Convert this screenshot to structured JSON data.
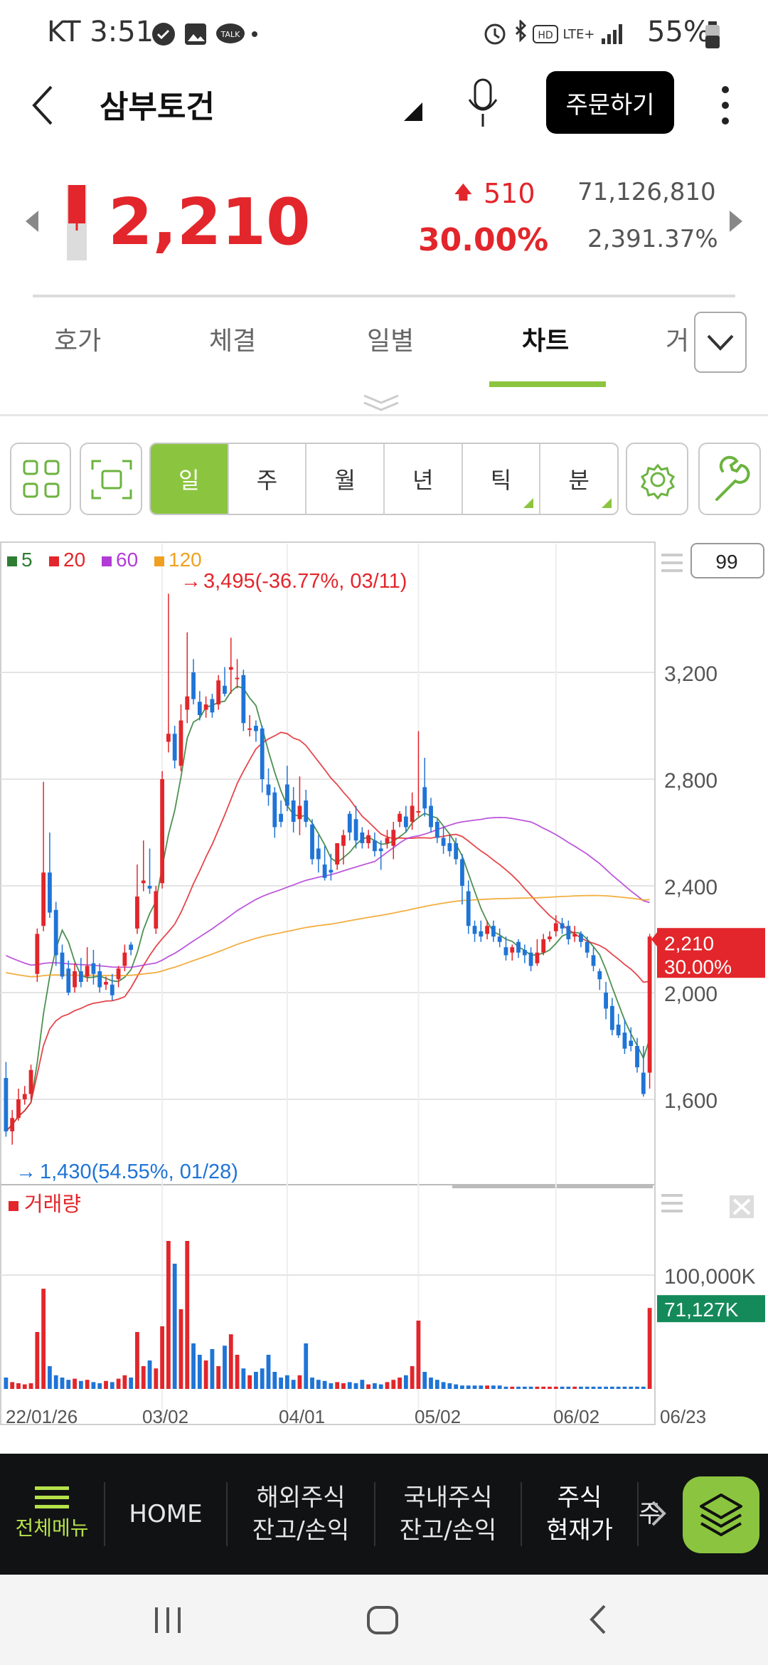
{
  "status_bar": {
    "carrier_time": "KT 3:51",
    "battery": "55%",
    "talk_badge": "TALK",
    "hd_badge": "HD",
    "network": "LTE+"
  },
  "header": {
    "title": "삼부토건",
    "order_label": "주문하기"
  },
  "price": {
    "current": "2,210",
    "change": "510",
    "change_rate": "30.00%",
    "volume": "71,126,810",
    "volume_rate": "2,391.37%"
  },
  "tabs": [
    "호가",
    "체결",
    "일별",
    "차트",
    "거"
  ],
  "active_tab": "차트",
  "periods": [
    {
      "label": "일",
      "active": true,
      "corner": false
    },
    {
      "label": "주",
      "active": false,
      "corner": false
    },
    {
      "label": "월",
      "active": false,
      "corner": false
    },
    {
      "label": "년",
      "active": false,
      "corner": false
    },
    {
      "label": "틱",
      "active": false,
      "corner": true
    },
    {
      "label": "분",
      "active": false,
      "corner": true
    }
  ],
  "chart_data": {
    "type": "candlestick",
    "legend": [
      {
        "label": "5",
        "color": "#2e7d32"
      },
      {
        "label": "20",
        "color": "#e2262b"
      },
      {
        "label": "60",
        "color": "#b23bd6"
      },
      {
        "label": "120",
        "color": "#f0a020"
      }
    ],
    "count_box": "99",
    "high_annotation": "3,495(-36.77%, 03/11)",
    "low_annotation": "1,430(54.55%, 01/28)",
    "y_ticks": [
      3200,
      2800,
      2400,
      2000,
      1600
    ],
    "y_tick_labels": [
      "3,200",
      "2,800",
      "2,400",
      "2,000",
      "1,600"
    ],
    "ylim": [
      1400,
      3560
    ],
    "current_label": [
      "2,210",
      "30.00%"
    ],
    "x_labels": [
      "22/01/26",
      "03/02",
      "04/01",
      "05/02",
      "06/02",
      "06/23"
    ],
    "candles": [
      [
        1680,
        1480,
        1460,
        1740
      ],
      [
        1480,
        1530,
        1430,
        1560
      ],
      [
        1530,
        1600,
        1520,
        1640
      ],
      [
        1600,
        1620,
        1580,
        1650
      ],
      [
        1620,
        1710,
        1600,
        1730
      ],
      [
        2070,
        2220,
        2040,
        2240
      ],
      [
        2250,
        2450,
        2230,
        2790
      ],
      [
        2450,
        2300,
        2280,
        2600
      ],
      [
        2310,
        2140,
        2100,
        2340
      ],
      [
        2150,
        2060,
        2050,
        2180
      ],
      [
        2090,
        2000,
        1990,
        2120
      ],
      [
        2020,
        2080,
        2000,
        2110
      ],
      [
        2080,
        2040,
        2020,
        2130
      ],
      [
        2060,
        2100,
        2040,
        2170
      ],
      [
        2110,
        2070,
        2030,
        2160
      ],
      [
        2080,
        2020,
        2000,
        2110
      ],
      [
        2030,
        2040,
        2010,
        2060
      ],
      [
        2030,
        1990,
        1970,
        2070
      ],
      [
        2050,
        2090,
        2020,
        2100
      ],
      [
        2100,
        2150,
        2080,
        2180
      ],
      [
        2180,
        2160,
        2140,
        2190
      ],
      [
        2240,
        2360,
        2220,
        2480
      ],
      [
        2410,
        2420,
        2380,
        2570
      ],
      [
        2400,
        2390,
        2370,
        2540
      ],
      [
        2240,
        2380,
        2220,
        2400
      ],
      [
        2410,
        2800,
        2390,
        2830
      ],
      [
        2940,
        2970,
        2900,
        3495
      ],
      [
        2970,
        2870,
        2840,
        3000
      ],
      [
        2850,
        3020,
        2830,
        3080
      ],
      [
        3060,
        3110,
        3010,
        3350
      ],
      [
        3200,
        3100,
        3080,
        3250
      ],
      [
        3090,
        3040,
        3020,
        3130
      ],
      [
        3060,
        3080,
        3030,
        3110
      ],
      [
        3100,
        3050,
        3030,
        3120
      ],
      [
        3080,
        3170,
        3060,
        3190
      ],
      [
        3150,
        3120,
        3110,
        3220
      ],
      [
        3210,
        3220,
        3120,
        3330
      ],
      [
        3180,
        3180,
        3140,
        3250
      ],
      [
        3190,
        3010,
        2980,
        3210
      ],
      [
        2990,
        2990,
        2960,
        3040
      ],
      [
        3000,
        2980,
        2940,
        3020
      ],
      [
        2990,
        2800,
        2750,
        3000
      ],
      [
        2780,
        2740,
        2700,
        2840
      ],
      [
        2750,
        2620,
        2580,
        2770
      ],
      [
        2670,
        2640,
        2620,
        2720
      ],
      [
        2780,
        2700,
        2680,
        2850
      ],
      [
        2720,
        2640,
        2600,
        2770
      ],
      [
        2650,
        2700,
        2590,
        2810
      ],
      [
        2720,
        2640,
        2620,
        2760
      ],
      [
        2630,
        2500,
        2480,
        2650
      ],
      [
        2540,
        2500,
        2450,
        2590
      ],
      [
        2480,
        2430,
        2420,
        2550
      ],
      [
        2460,
        2450,
        2420,
        2520
      ],
      [
        2480,
        2560,
        2460,
        2560
      ],
      [
        2550,
        2590,
        2480,
        2610
      ],
      [
        2670,
        2600,
        2570,
        2680
      ],
      [
        2650,
        2570,
        2540,
        2700
      ],
      [
        2600,
        2560,
        2540,
        2620
      ],
      [
        2560,
        2590,
        2540,
        2610
      ],
      [
        2570,
        2530,
        2510,
        2600
      ],
      [
        2540,
        2530,
        2460,
        2570
      ],
      [
        2560,
        2580,
        2540,
        2610
      ],
      [
        2550,
        2610,
        2500,
        2640
      ],
      [
        2640,
        2670,
        2620,
        2680
      ],
      [
        2660,
        2620,
        2600,
        2700
      ],
      [
        2640,
        2700,
        2610,
        2750
      ],
      [
        2680,
        2680,
        2660,
        2980
      ],
      [
        2770,
        2690,
        2660,
        2880
      ],
      [
        2700,
        2620,
        2600,
        2730
      ],
      [
        2640,
        2580,
        2560,
        2650
      ],
      [
        2580,
        2550,
        2520,
        2620
      ],
      [
        2560,
        2530,
        2510,
        2590
      ],
      [
        2560,
        2500,
        2480,
        2580
      ],
      [
        2500,
        2400,
        2330,
        2520
      ],
      [
        2380,
        2250,
        2220,
        2420
      ],
      [
        2250,
        2220,
        2190,
        2270
      ],
      [
        2230,
        2210,
        2190,
        2270
      ],
      [
        2220,
        2250,
        2200,
        2270
      ],
      [
        2250,
        2210,
        2190,
        2270
      ],
      [
        2210,
        2190,
        2170,
        2240
      ],
      [
        2170,
        2140,
        2120,
        2210
      ],
      [
        2150,
        2170,
        2120,
        2180
      ],
      [
        2190,
        2150,
        2130,
        2200
      ],
      [
        2160,
        2140,
        2110,
        2180
      ],
      [
        2150,
        2100,
        2080,
        2170
      ],
      [
        2110,
        2150,
        2100,
        2200
      ],
      [
        2150,
        2200,
        2140,
        2220
      ],
      [
        2200,
        2210,
        2190,
        2230
      ],
      [
        2230,
        2260,
        2210,
        2290
      ],
      [
        2260,
        2240,
        2220,
        2280
      ],
      [
        2250,
        2200,
        2180,
        2270
      ],
      [
        2210,
        2220,
        2190,
        2250
      ],
      [
        2220,
        2190,
        2170,
        2230
      ],
      [
        2190,
        2150,
        2130,
        2210
      ],
      [
        2140,
        2100,
        2080,
        2170
      ],
      [
        2080,
        2050,
        2010,
        2090
      ],
      [
        2000,
        1940,
        1900,
        2040
      ],
      [
        1950,
        1860,
        1840,
        1980
      ],
      [
        1880,
        1840,
        1830,
        1920
      ],
      [
        1850,
        1790,
        1770,
        1900
      ],
      [
        1820,
        1800,
        1780,
        1870
      ],
      [
        1800,
        1720,
        1700,
        1830
      ],
      [
        1700,
        1620,
        1610,
        1800
      ],
      [
        1700,
        2210,
        1640,
        2220
      ]
    ],
    "volume": {
      "label": "거래량",
      "y_tick": "100,000K",
      "current_label": "71,127K",
      "ylim": [
        0,
        170000
      ],
      "values": [
        10000,
        6000,
        5000,
        4000,
        5000,
        50000,
        88000,
        20000,
        12000,
        10000,
        8000,
        9000,
        7000,
        8000,
        6000,
        5000,
        7000,
        6000,
        9000,
        12000,
        10000,
        50000,
        20000,
        25000,
        18000,
        55000,
        130000,
        110000,
        70000,
        130000,
        40000,
        30000,
        25000,
        35000,
        20000,
        38000,
        48000,
        30000,
        18000,
        12000,
        15000,
        18000,
        30000,
        15000,
        10000,
        12000,
        8000,
        12000,
        40000,
        10000,
        8000,
        7000,
        5000,
        6000,
        5000,
        6000,
        5000,
        8000,
        4000,
        5000,
        4000,
        6000,
        8000,
        10000,
        12000,
        20000,
        60000,
        15000,
        10000,
        8000,
        6000,
        5000,
        4000,
        3000,
        3000,
        3000,
        3000,
        3000,
        3000,
        3000,
        2000,
        2000,
        2000,
        2000,
        2000,
        2000,
        2000,
        2000,
        2000,
        2000,
        2000,
        2000,
        2000,
        2000,
        2000,
        2000,
        2000,
        2000,
        2000,
        2000,
        2000,
        2000,
        2000,
        71127
      ]
    }
  },
  "bottom_nav": {
    "menu_label": "전체메뉴",
    "home": "HOME",
    "overseas": [
      "해외주식",
      "잔고/손익"
    ],
    "domestic": [
      "국내주식",
      "잔고/손익"
    ],
    "current": [
      "주식",
      "현재가"
    ],
    "partial": "주"
  },
  "colors": {
    "up": "#e2262b",
    "down": "#1f74d6",
    "accent": "#8bc53f",
    "volume_label_bg": "#148a5a"
  }
}
